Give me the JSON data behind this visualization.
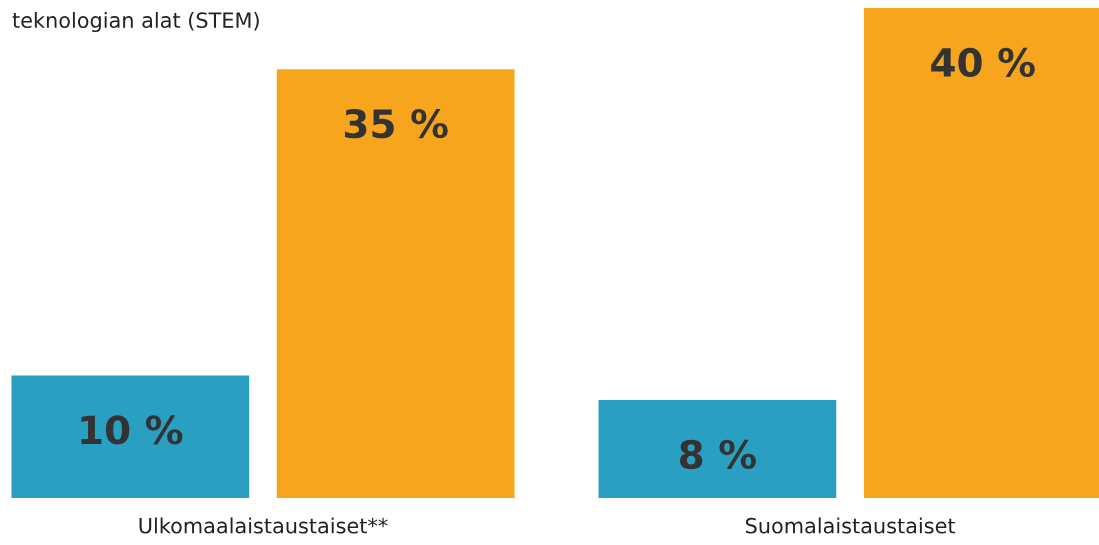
{
  "chart_data": {
    "type": "bar",
    "title": "teknologian alat (STEM)",
    "categories": [
      "Ulkomaalaistaustaiset**",
      "Suomalaistaustaiset"
    ],
    "series": [
      {
        "color": "#29a0c1",
        "values": [
          10,
          8
        ],
        "value_labels": [
          "10 %",
          "8 %"
        ]
      },
      {
        "color": "#f7a51c",
        "values": [
          35,
          40
        ],
        "value_labels": [
          "35 %",
          "40 %"
        ]
      }
    ],
    "grid": false,
    "legend": false
  }
}
